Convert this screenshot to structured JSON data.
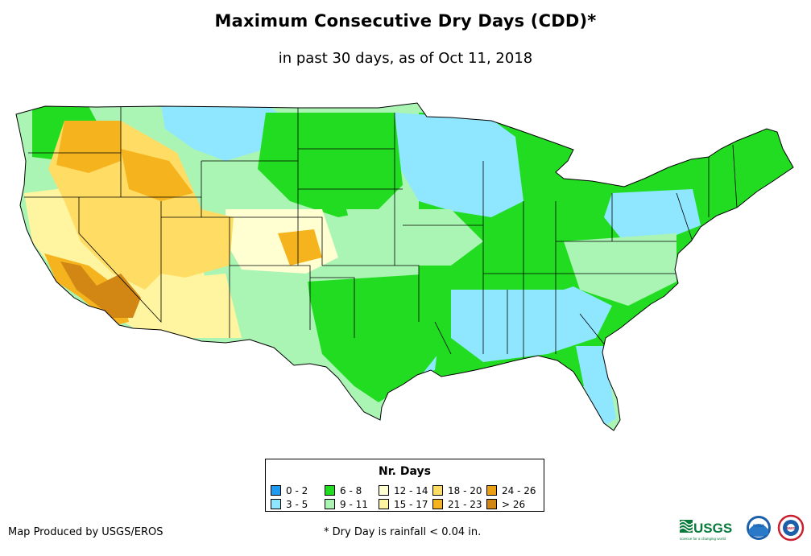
{
  "title": "Maximum Consecutive Dry Days (CDD)*",
  "subtitle": "in past 30 days, as of Oct 11, 2018",
  "legend": {
    "title": "Nr. Days",
    "items": [
      {
        "label": "0 - 2",
        "color": "#1e9bf0"
      },
      {
        "label": "3 - 5",
        "color": "#8fe6ff"
      },
      {
        "label": "6 - 8",
        "color": "#22dc22"
      },
      {
        "label": "9 - 11",
        "color": "#aaf5b4"
      },
      {
        "label": "12 - 14",
        "color": "#ffffd2"
      },
      {
        "label": "15 - 17",
        "color": "#fff5a0"
      },
      {
        "label": "18 - 20",
        "color": "#ffdc64"
      },
      {
        "label": "21 - 23",
        "color": "#f5b41e"
      },
      {
        "label": "24 - 26",
        "color": "#eba014"
      },
      {
        "label": "> 26",
        "color": "#d28714"
      }
    ]
  },
  "credit": "Map Produced by USGS/EROS",
  "footnote": "* Dry Day is rainfall < 0.04 in.",
  "logos": {
    "usgs_text": "USGS",
    "usgs_tagline": "science for a changing world",
    "noaa_text": "noaa",
    "nws_text": "NWS"
  }
}
